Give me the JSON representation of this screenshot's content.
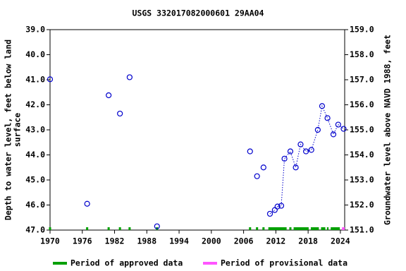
{
  "chart_data": {
    "type": "scatter",
    "title": "USGS 332017082000601 29AA04",
    "ylabel": [
      "Depth to water level, feet below land",
      "surface"
    ],
    "y2label": "Groundwater level above NAVD 1988, feet",
    "xlim": [
      1970,
      2024.8
    ],
    "xticks": [
      1970,
      1976,
      1982,
      1988,
      1994,
      2000,
      2006,
      2012,
      2018,
      2024
    ],
    "ylim": [
      39,
      47
    ],
    "y_inverted": true,
    "yticks": [
      {
        "value": 39,
        "label": "39.0"
      },
      {
        "value": 40,
        "label": "40.0"
      },
      {
        "value": 41,
        "label": "41.0"
      },
      {
        "value": 42,
        "label": "42.0"
      },
      {
        "value": 43,
        "label": "43.0"
      },
      {
        "value": 44,
        "label": "44.0"
      },
      {
        "value": 45,
        "label": "45.0"
      },
      {
        "value": 46,
        "label": "46.0"
      },
      {
        "value": 47,
        "label": "47.0"
      }
    ],
    "y2lim": [
      151,
      159
    ],
    "y2ticks": [
      {
        "value": 151,
        "label": "151.0"
      },
      {
        "value": 152,
        "label": "152.0"
      },
      {
        "value": 153,
        "label": "153.0"
      },
      {
        "value": 154,
        "label": "154.0"
      },
      {
        "value": 155,
        "label": "155.0"
      },
      {
        "value": 156,
        "label": "156.0"
      },
      {
        "value": 157,
        "label": "157.0"
      },
      {
        "value": 158,
        "label": "158.0"
      },
      {
        "value": 159,
        "label": "159.0"
      }
    ],
    "series": [
      {
        "color": "#0000cc",
        "line": false,
        "x": [
          1970.0,
          1976.9,
          1980.9,
          1983.0,
          1984.8,
          1989.9,
          2007.2,
          2008.5,
          2009.7
        ],
        "values": [
          40.98,
          45.95,
          41.62,
          42.35,
          40.9,
          46.85,
          43.86,
          44.85,
          44.5
        ]
      },
      {
        "color": "#0000cc",
        "line": true,
        "x": [
          2010.9,
          2011.8,
          2012.3,
          2013.0,
          2013.6,
          2014.7,
          2015.7,
          2016.6,
          2017.6,
          2018.6,
          2019.8,
          2020.6,
          2021.6,
          2022.7,
          2023.6,
          2024.6
        ],
        "values": [
          46.35,
          46.2,
          46.06,
          46.03,
          44.15,
          43.86,
          44.5,
          43.58,
          43.86,
          43.8,
          43.0,
          42.05,
          42.53,
          43.18,
          42.79,
          42.96
        ]
      }
    ],
    "periods": [
      {
        "label": "Period of approved data",
        "color": "#00a000",
        "ranges": [
          [
            1969.8,
            1970.2
          ],
          [
            1976.7,
            1977.1
          ],
          [
            1980.7,
            1981.1
          ],
          [
            1982.8,
            1983.2
          ],
          [
            1984.6,
            1985.0
          ],
          [
            1989.7,
            1990.1
          ],
          [
            2007.0,
            2007.4
          ],
          [
            2008.3,
            2008.7
          ],
          [
            2009.5,
            2009.9
          ],
          [
            2010.6,
            2014.0
          ],
          [
            2014.5,
            2014.9
          ],
          [
            2015.3,
            2018.1
          ],
          [
            2018.5,
            2020.0
          ],
          [
            2020.4,
            2021.2
          ],
          [
            2021.5,
            2021.8
          ],
          [
            2022.2,
            2023.9
          ]
        ]
      },
      {
        "label": "Period of provisional data",
        "color": "#ff55ff",
        "ranges": [
          [
            2024.3,
            2024.8
          ]
        ]
      }
    ]
  }
}
